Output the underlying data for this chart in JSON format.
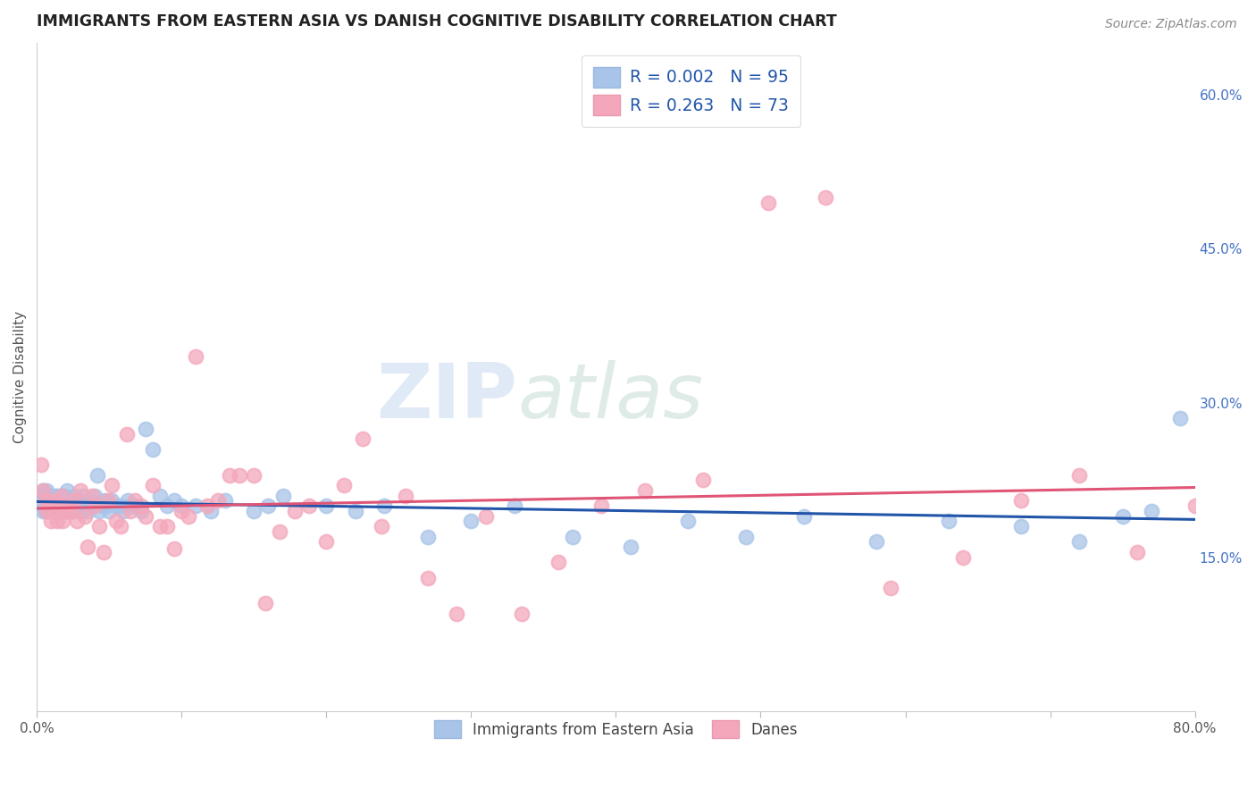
{
  "title": "IMMIGRANTS FROM EASTERN ASIA VS DANISH COGNITIVE DISABILITY CORRELATION CHART",
  "source": "Source: ZipAtlas.com",
  "ylabel": "Cognitive Disability",
  "xlim": [
    0.0,
    0.8
  ],
  "ylim": [
    0.0,
    0.65
  ],
  "yticks_right": [
    0.15,
    0.3,
    0.45,
    0.6
  ],
  "ytick_labels_right": [
    "15.0%",
    "30.0%",
    "45.0%",
    "60.0%"
  ],
  "series1_label": "Immigrants from Eastern Asia",
  "series2_label": "Danes",
  "series1_color": "#a8c4e8",
  "series2_color": "#f4a7bb",
  "series1_R": "0.002",
  "series1_N": "95",
  "series2_R": "0.263",
  "series2_N": "73",
  "trendline1_color": "#2255aa",
  "trendline2_color": "#e05575",
  "legend_R_color": "#2255aa",
  "watermark_zip": "ZIP",
  "watermark_atlas": "atlas",
  "background_color": "#ffffff",
  "grid_color": "#c8d4e8",
  "series1_x": [
    0.002,
    0.003,
    0.004,
    0.004,
    0.005,
    0.005,
    0.006,
    0.006,
    0.007,
    0.007,
    0.008,
    0.008,
    0.009,
    0.009,
    0.01,
    0.01,
    0.011,
    0.011,
    0.012,
    0.012,
    0.013,
    0.013,
    0.014,
    0.014,
    0.015,
    0.015,
    0.016,
    0.016,
    0.017,
    0.017,
    0.018,
    0.018,
    0.019,
    0.019,
    0.02,
    0.021,
    0.022,
    0.023,
    0.024,
    0.025,
    0.026,
    0.027,
    0.028,
    0.03,
    0.031,
    0.032,
    0.033,
    0.035,
    0.037,
    0.038,
    0.04,
    0.042,
    0.043,
    0.045,
    0.047,
    0.048,
    0.05,
    0.052,
    0.055,
    0.058,
    0.06,
    0.063,
    0.065,
    0.068,
    0.072,
    0.075,
    0.08,
    0.085,
    0.09,
    0.095,
    0.1,
    0.11,
    0.12,
    0.13,
    0.15,
    0.16,
    0.17,
    0.2,
    0.22,
    0.24,
    0.27,
    0.3,
    0.33,
    0.37,
    0.41,
    0.45,
    0.49,
    0.53,
    0.58,
    0.63,
    0.68,
    0.72,
    0.75,
    0.77,
    0.79
  ],
  "series1_y": [
    0.21,
    0.205,
    0.195,
    0.215,
    0.2,
    0.21,
    0.195,
    0.21,
    0.205,
    0.215,
    0.2,
    0.205,
    0.195,
    0.21,
    0.2,
    0.205,
    0.195,
    0.21,
    0.2,
    0.205,
    0.195,
    0.21,
    0.205,
    0.2,
    0.195,
    0.21,
    0.2,
    0.205,
    0.195,
    0.21,
    0.2,
    0.205,
    0.195,
    0.21,
    0.2,
    0.215,
    0.195,
    0.205,
    0.2,
    0.195,
    0.21,
    0.2,
    0.205,
    0.2,
    0.195,
    0.21,
    0.2,
    0.195,
    0.205,
    0.2,
    0.21,
    0.23,
    0.195,
    0.2,
    0.205,
    0.2,
    0.195,
    0.205,
    0.2,
    0.2,
    0.195,
    0.205,
    0.2,
    0.2,
    0.195,
    0.275,
    0.255,
    0.21,
    0.2,
    0.205,
    0.2,
    0.2,
    0.195,
    0.205,
    0.195,
    0.2,
    0.21,
    0.2,
    0.195,
    0.2,
    0.17,
    0.185,
    0.2,
    0.17,
    0.16,
    0.185,
    0.17,
    0.19,
    0.165,
    0.185,
    0.18,
    0.165,
    0.19,
    0.195,
    0.285
  ],
  "series2_x": [
    0.003,
    0.004,
    0.006,
    0.007,
    0.009,
    0.01,
    0.011,
    0.013,
    0.014,
    0.016,
    0.017,
    0.018,
    0.02,
    0.022,
    0.024,
    0.026,
    0.028,
    0.03,
    0.033,
    0.035,
    0.038,
    0.04,
    0.043,
    0.046,
    0.049,
    0.052,
    0.055,
    0.058,
    0.062,
    0.065,
    0.068,
    0.072,
    0.075,
    0.08,
    0.085,
    0.09,
    0.095,
    0.1,
    0.105,
    0.11,
    0.118,
    0.125,
    0.133,
    0.14,
    0.15,
    0.158,
    0.168,
    0.178,
    0.188,
    0.2,
    0.212,
    0.225,
    0.238,
    0.255,
    0.27,
    0.29,
    0.31,
    0.335,
    0.36,
    0.39,
    0.42,
    0.46,
    0.505,
    0.545,
    0.59,
    0.64,
    0.68,
    0.72,
    0.76,
    0.8,
    0.81,
    0.82,
    0.83
  ],
  "series2_y": [
    0.24,
    0.215,
    0.205,
    0.195,
    0.2,
    0.185,
    0.195,
    0.205,
    0.185,
    0.2,
    0.21,
    0.185,
    0.195,
    0.2,
    0.195,
    0.205,
    0.185,
    0.215,
    0.19,
    0.16,
    0.21,
    0.2,
    0.18,
    0.155,
    0.205,
    0.22,
    0.185,
    0.18,
    0.27,
    0.195,
    0.205,
    0.2,
    0.19,
    0.22,
    0.18,
    0.18,
    0.158,
    0.195,
    0.19,
    0.345,
    0.2,
    0.205,
    0.23,
    0.23,
    0.23,
    0.105,
    0.175,
    0.195,
    0.2,
    0.165,
    0.22,
    0.265,
    0.18,
    0.21,
    0.13,
    0.095,
    0.19,
    0.095,
    0.145,
    0.2,
    0.215,
    0.225,
    0.495,
    0.5,
    0.12,
    0.15,
    0.205,
    0.23,
    0.155,
    0.2,
    0.2,
    0.21,
    0.19
  ]
}
